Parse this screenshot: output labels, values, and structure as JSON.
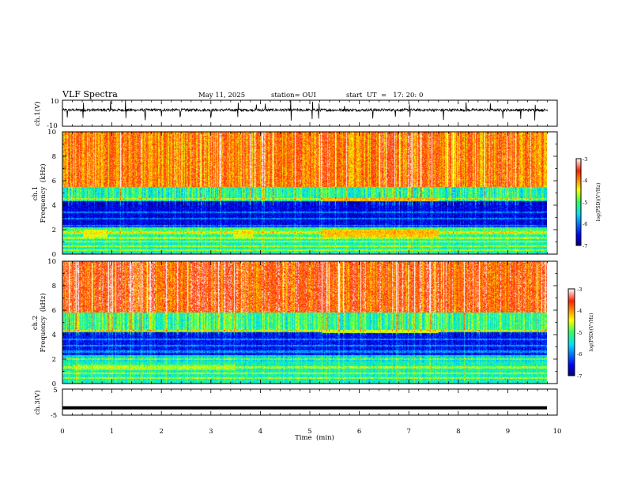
{
  "header": {
    "title": "VLF Spectra",
    "date": "May 11, 2025",
    "station": "station= OUI",
    "start": "start  UT  =   17: 20: 0"
  },
  "chart_data": [
    {
      "type": "line",
      "panel": "ch1-waveform",
      "ylabel": "ch.1(V)",
      "ylim": [
        -10,
        10
      ],
      "yticks": [
        "10",
        "-10"
      ],
      "xlim": [
        0,
        10
      ],
      "baseline_v": 2.5,
      "noise_amplitude_v": 1.0,
      "spike_times_min": [
        0.1,
        0.42,
        0.97,
        1.28,
        1.67,
        2.0,
        2.38,
        3.0,
        3.55,
        3.92,
        4.1,
        4.62,
        5.05,
        5.18,
        5.7,
        6.27,
        6.73,
        7.02,
        7.7,
        8.16,
        8.65,
        8.9,
        9.26,
        9.55
      ]
    },
    {
      "type": "heatmap",
      "panel": "ch1-spectrogram",
      "ylabel_top": "ch.1",
      "ylabel": "Frequency  (kHz)",
      "yticks": [
        "0",
        "2",
        "4",
        "6",
        "8",
        "10"
      ],
      "ylim": [
        0,
        10
      ],
      "xlim": [
        0,
        10
      ],
      "colorbar": {
        "label": "log(PSD)(V²/Hz)",
        "ticks": [
          "-3",
          "-4",
          "-5",
          "-6",
          "-7"
        ],
        "range": [
          -7,
          -3
        ]
      },
      "bands_khz": [
        {
          "from": 0,
          "to": 1.5,
          "level": -5.3
        },
        {
          "from": 1.5,
          "to": 2.2,
          "level": -5.0
        },
        {
          "from": 2.2,
          "to": 4.3,
          "level": -6.6
        },
        {
          "from": 4.3,
          "to": 5.5,
          "level": -5.2
        },
        {
          "from": 5.5,
          "to": 10,
          "level": -3.9
        }
      ],
      "tones_khz": [
        0.3,
        0.6,
        1.0,
        1.3,
        1.75,
        2.3,
        2.9,
        3.4,
        4.5
      ],
      "bursts_min": [
        {
          "start": 5.25,
          "end": 7.6,
          "freq_from": 1.4,
          "freq_to": 2.0,
          "level": -4.2
        },
        {
          "start": 5.25,
          "end": 7.6,
          "freq_from": 4.3,
          "freq_to": 4.6,
          "level": -4.2
        },
        {
          "start": 0.4,
          "end": 0.9,
          "freq_from": 1.3,
          "freq_to": 2.0,
          "level": -4.5
        },
        {
          "start": 3.45,
          "end": 3.85,
          "freq_from": 1.3,
          "freq_to": 2.0,
          "level": -4.5
        }
      ]
    },
    {
      "type": "heatmap",
      "panel": "ch2-spectrogram",
      "ylabel_top": "ch.2",
      "ylabel": "Frequency  (kHz)",
      "yticks": [
        "0",
        "2",
        "4",
        "6",
        "8",
        "10"
      ],
      "ylim": [
        0,
        10
      ],
      "xlim": [
        0,
        10
      ],
      "colorbar": {
        "label": "log(PSD)(V²/Hz)",
        "ticks": [
          "-3",
          "-4",
          "-5",
          "-6",
          "-7"
        ],
        "range": [
          -7,
          -3
        ]
      },
      "bands_khz": [
        {
          "from": 0,
          "to": 1.8,
          "level": -5.3
        },
        {
          "from": 1.8,
          "to": 2.3,
          "level": -5.5
        },
        {
          "from": 2.3,
          "to": 4.2,
          "level": -6.5
        },
        {
          "from": 4.2,
          "to": 5.8,
          "level": -5.1
        },
        {
          "from": 5.8,
          "to": 10,
          "level": -3.7
        }
      ],
      "tones_khz": [
        0.4,
        0.8,
        1.3,
        2.0,
        2.6,
        3.1,
        3.6,
        4.3
      ],
      "bursts_min": [
        {
          "start": 5.25,
          "end": 7.6,
          "freq_from": 4.1,
          "freq_to": 4.4,
          "level": -4.6
        },
        {
          "start": 0.2,
          "end": 3.5,
          "freq_from": 1.1,
          "freq_to": 1.5,
          "level": -4.8
        }
      ]
    },
    {
      "type": "line",
      "panel": "ch3-waveform",
      "ylabel": "ch.3(V)",
      "ylim": [
        -5,
        5
      ],
      "yticks": [
        "5",
        "-5"
      ],
      "xlim": [
        0,
        10
      ],
      "value_v": -2.2,
      "xlabel": "Time  (min)",
      "xticks": [
        "0",
        "1",
        "2",
        "3",
        "4",
        "5",
        "6",
        "7",
        "8",
        "9",
        "10"
      ]
    }
  ]
}
